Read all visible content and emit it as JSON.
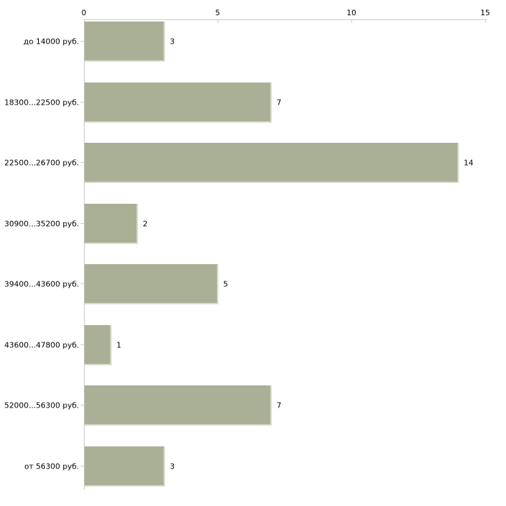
{
  "chart_data": {
    "type": "bar",
    "orientation": "horizontal",
    "title": "",
    "xlabel": "",
    "ylabel": "",
    "categories": [
      "до 14000 руб.",
      "18300...22500 руб.",
      "22500...26700 руб.",
      "30900...35200 руб.",
      "39400...43600 руб.",
      "43600...47800 руб.",
      "52000...56300 руб.",
      "от 56300 руб."
    ],
    "values": [
      3,
      7,
      14,
      2,
      5,
      1,
      7,
      3
    ],
    "value_labels": [
      "3",
      "7",
      "14",
      "2",
      "5",
      "1",
      "7",
      "3"
    ],
    "x_ticks": [
      "0",
      "5",
      "10",
      "15"
    ],
    "x_tick_values": [
      0,
      5,
      10,
      15
    ],
    "xlim": [
      0,
      15
    ],
    "grid": false,
    "legend_position": "none",
    "axis_position": "top",
    "colors": {
      "bar": "#aab095",
      "bar_edge": "#d8dbca",
      "axis": "#c8c8c8",
      "tick": "#cdd0b8",
      "text": "#000000",
      "background": "#ffffff"
    }
  }
}
